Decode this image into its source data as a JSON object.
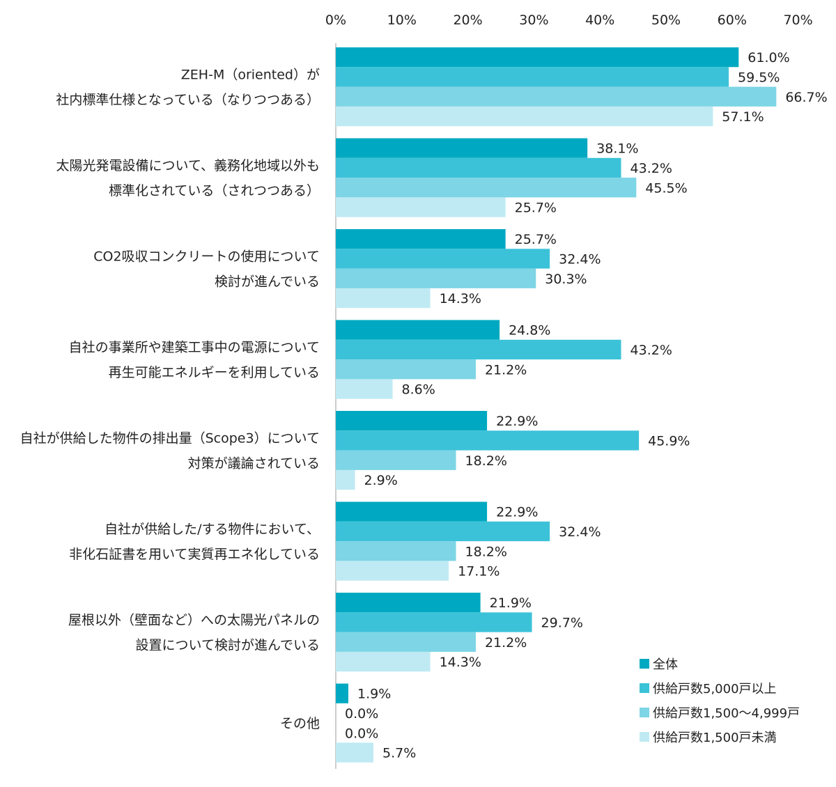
{
  "chart_data": {
    "type": "bar",
    "orientation": "horizontal",
    "title": "",
    "xlabel": "",
    "ylabel": "",
    "xlim": [
      0,
      70
    ],
    "ticks": [
      "0%",
      "10%",
      "20%",
      "30%",
      "40%",
      "50%",
      "60%",
      "70%"
    ],
    "grid": false,
    "legend_position": "bottom-right",
    "categories": [
      {
        "lines": [
          "ZEH-M（oriented）が",
          "社内標準仕様となっている（なりつつある）"
        ]
      },
      {
        "lines": [
          "太陽光発電設備について、義務化地域以外も",
          "標準化されている（されつつある）"
        ]
      },
      {
        "lines": [
          "CO2吸収コンクリートの使用について",
          "検討が進んでいる"
        ]
      },
      {
        "lines": [
          "自社の事業所や建築工事中の電源について",
          "再生可能エネルギーを利用している"
        ]
      },
      {
        "lines": [
          "自社が供給した物件の排出量（Scope3）について",
          "対策が議論されている"
        ]
      },
      {
        "lines": [
          "自社が供給した/する物件において、",
          "非化石証書を用いて実質再エネ化している"
        ]
      },
      {
        "lines": [
          "屋根以外（壁面など）への太陽光パネルの",
          "設置について検討が進んでいる"
        ]
      },
      {
        "lines": [
          "その他"
        ]
      }
    ],
    "series": [
      {
        "name": "全体",
        "color": "#00A9C1",
        "values": [
          61.0,
          38.1,
          25.7,
          24.8,
          22.9,
          22.9,
          21.9,
          1.9
        ],
        "labels": [
          "61.0%",
          "38.1%",
          "25.7%",
          "24.8%",
          "22.9%",
          "22.9%",
          "21.9%",
          "1.9%"
        ]
      },
      {
        "name": "供給戸数5,000戸以上",
        "color": "#3CC2D8",
        "values": [
          59.5,
          43.2,
          32.4,
          43.2,
          45.9,
          32.4,
          29.7,
          0.0
        ],
        "labels": [
          "59.5%",
          "43.2%",
          "32.4%",
          "43.2%",
          "45.9%",
          "32.4%",
          "29.7%",
          "0.0%"
        ]
      },
      {
        "name": "供給戸数1,500～4,999戸",
        "color": "#7DD5E5",
        "values": [
          66.7,
          45.5,
          30.3,
          21.2,
          18.2,
          18.2,
          21.2,
          0.0
        ],
        "labels": [
          "66.7%",
          "45.5%",
          "30.3%",
          "21.2%",
          "18.2%",
          "18.2%",
          "21.2%",
          "0.0%"
        ]
      },
      {
        "name": "供給戸数1,500戸未満",
        "color": "#BFEAF3",
        "values": [
          57.1,
          25.7,
          14.3,
          8.6,
          2.9,
          17.1,
          14.3,
          5.7
        ],
        "labels": [
          "57.1%",
          "25.7%",
          "14.3%",
          "8.6%",
          "2.9%",
          "17.1%",
          "14.3%",
          "5.7%"
        ]
      }
    ]
  }
}
